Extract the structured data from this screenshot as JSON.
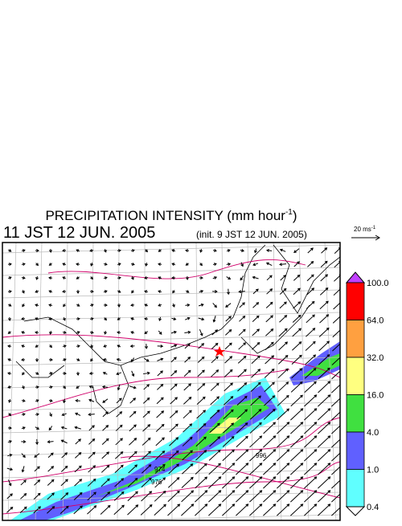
{
  "header": {
    "title": "PRECIPITATION INTENSITY (mm hour",
    "title_exponent": "-1",
    "title_close": ")",
    "valid_time": "11 JST 12 JUN. 2005",
    "init_time": "(init. 9 JST 12 JUN. 2005)"
  },
  "vector_scale": {
    "label": "20 ms",
    "exponent": "-1"
  },
  "legend": {
    "levels": [
      {
        "label": "100.0",
        "color": "#ff0000"
      },
      {
        "label": "64.0",
        "color": "#ffa040"
      },
      {
        "label": "32.0",
        "color": "#ffff80"
      },
      {
        "label": "16.0",
        "color": "#40e040"
      },
      {
        "label": "4.0",
        "color": "#6060ff"
      },
      {
        "label": "1.0",
        "color": "#60ffff"
      },
      {
        "label": "0.4",
        "color": "#ffffff"
      }
    ],
    "top_color": "#c040ff"
  },
  "contour_labels": [
    "974",
    "976",
    "996"
  ]
}
